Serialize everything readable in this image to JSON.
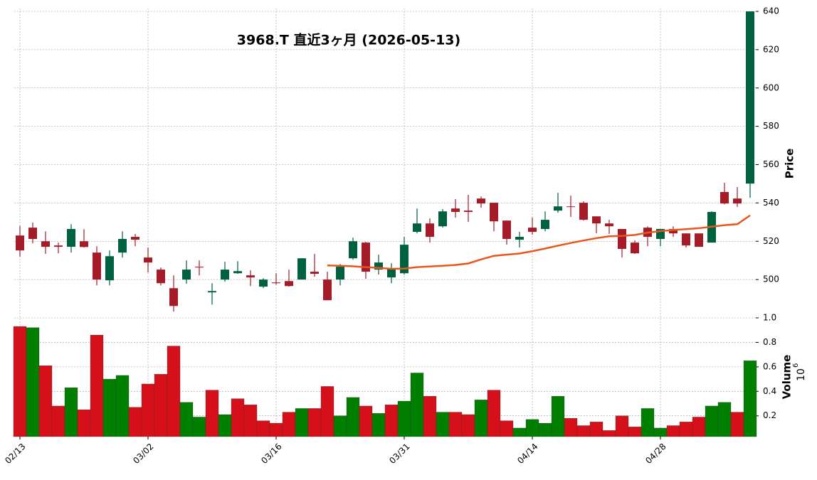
{
  "chart_data": {
    "type": "candlestick",
    "title": "3968.T  直近3ヶ月  (2026-05-13)",
    "categories": [
      "02/13",
      null,
      null,
      null,
      null,
      null,
      null,
      null,
      null,
      null,
      "03/02",
      null,
      null,
      null,
      null,
      null,
      null,
      null,
      null,
      null,
      "03/16",
      null,
      null,
      null,
      null,
      null,
      null,
      null,
      null,
      null,
      "03/31",
      null,
      null,
      null,
      null,
      null,
      null,
      null,
      null,
      null,
      "04/14",
      null,
      null,
      null,
      null,
      null,
      null,
      null,
      null,
      null,
      "04/28",
      null,
      null,
      null,
      null,
      null,
      null,
      null
    ],
    "open": [
      523,
      527.1,
      520,
      517.8,
      517.1,
      520,
      514.1,
      499.6,
      514.1,
      522.3,
      511.5,
      505.2,
      495.5,
      500,
      506.7,
      493.3,
      500,
      503.3,
      502.2,
      496.3,
      498.5,
      499.2,
      500,
      504.1,
      500,
      500,
      511.1,
      519.3,
      505.2,
      501.1,
      503.3,
      524.9,
      529.3,
      527.8,
      537.1,
      536,
      542.3,
      540.1,
      530.8,
      520.8,
      527.1,
      526.4,
      536,
      538.2,
      540.1,
      533,
      529.3,
      526.4,
      519.3,
      527.1,
      521.2,
      526.4,
      524.1,
      524.1,
      519.3,
      545.7,
      542.3,
      550.1
    ],
    "high": [
      528,
      529.7,
      525.2,
      519.3,
      528.9,
      526.3,
      517.4,
      515.2,
      525.2,
      523.8,
      516.7,
      506.3,
      502.2,
      510,
      510,
      498.1,
      509.3,
      509.6,
      504.8,
      500.7,
      503.3,
      505.2,
      511.1,
      513.4,
      504.1,
      508.1,
      521.9,
      519.7,
      513,
      508.5,
      522.3,
      537.1,
      531.9,
      536.8,
      542,
      544.2,
      543.4,
      540.1,
      530.8,
      524.9,
      532.3,
      535.6,
      545.3,
      543.8,
      540.8,
      533,
      531.2,
      526.4,
      520.4,
      527.8,
      526.4,
      527.8,
      524.1,
      524.1,
      535.6,
      550.5,
      548.3,
      640
    ],
    "low": [
      512,
      518.9,
      513.4,
      513.7,
      514.1,
      516.7,
      497,
      497,
      511.5,
      517.4,
      503.7,
      497,
      483.3,
      497.8,
      502.2,
      486.9,
      498.9,
      503,
      496.6,
      495.5,
      497.4,
      496.3,
      500,
      501.5,
      489.2,
      497,
      510.4,
      500.4,
      502.6,
      498.1,
      502.6,
      524.1,
      519.3,
      527.1,
      532.3,
      530.1,
      537.5,
      525.2,
      518.2,
      516.7,
      523.4,
      525.2,
      534.9,
      532.7,
      530.8,
      524.1,
      523.8,
      511.5,
      513.4,
      517.4,
      517.4,
      522.3,
      516.7,
      517.1,
      519.3,
      539.3,
      537.9,
      542.7
    ],
    "close": [
      515.2,
      521.2,
      517.1,
      517.1,
      526.4,
      517,
      500,
      512.2,
      521.2,
      520.8,
      508.9,
      498.1,
      486.2,
      505.2,
      506.3,
      494,
      505.2,
      504.4,
      501.1,
      500,
      498.1,
      496.6,
      511.1,
      503,
      489.2,
      506.7,
      520,
      504.1,
      508.9,
      506,
      518.2,
      529.3,
      522.3,
      535.6,
      535.3,
      535.3,
      539.7,
      530.4,
      521.2,
      522.3,
      524.9,
      531.2,
      538.2,
      537.9,
      531.2,
      529.3,
      527.8,
      516,
      513.7,
      522.3,
      526.4,
      524.1,
      517.8,
      517.1,
      535.3,
      539.7,
      539.7,
      640
    ],
    "up_color": "#00613f",
    "down_color": "#a31c28",
    "ylim": [
      480,
      640
    ],
    "yticks": [
      500,
      520,
      540,
      560,
      580,
      600,
      620,
      640
    ],
    "y_label": "Price",
    "grid": true,
    "moving_average": {
      "color": "#e8561e",
      "values": [
        null,
        null,
        null,
        null,
        null,
        null,
        null,
        null,
        null,
        null,
        null,
        null,
        null,
        null,
        null,
        null,
        null,
        null,
        null,
        null,
        null,
        null,
        null,
        null,
        507.4,
        507.2,
        506.9,
        506.5,
        506.1,
        505.6,
        505.7,
        506.5,
        506.8,
        507.2,
        507.6,
        508.4,
        510.5,
        512.4,
        513,
        513.6,
        514.8,
        516.2,
        517.7,
        519.1,
        520.4,
        521.6,
        522.6,
        522.8,
        523.3,
        524.5,
        525.3,
        525.9,
        526.3,
        526.8,
        527.6,
        528.4,
        528.9,
        533.5
      ]
    },
    "volume": {
      "label": "Volume",
      "scale_base": "10",
      "scale_exponent": "6",
      "up_color": "#007f00",
      "down_color": "#d6101b",
      "ylim": [
        0.03,
        1.0
      ],
      "yticks": [
        0.2,
        0.4,
        0.6,
        0.8,
        {
          "value": 1,
          "label": "1.0"
        }
      ],
      "values": [
        0.93,
        0.92,
        0.61,
        0.28,
        0.43,
        0.25,
        0.86,
        0.5,
        0.53,
        0.27,
        0.46,
        0.54,
        0.77,
        0.31,
        0.19,
        0.41,
        0.21,
        0.34,
        0.29,
        0.16,
        0.14,
        0.23,
        0.26,
        0.26,
        0.44,
        0.2,
        0.35,
        0.28,
        0.22,
        0.29,
        0.32,
        0.55,
        0.36,
        0.23,
        0.23,
        0.21,
        0.33,
        0.41,
        0.16,
        0.1,
        0.17,
        0.14,
        0.36,
        0.18,
        0.12,
        0.15,
        0.08,
        0.2,
        0.11,
        0.26,
        0.1,
        0.12,
        0.15,
        0.19,
        0.28,
        0.31,
        0.23,
        0.65
      ]
    }
  }
}
